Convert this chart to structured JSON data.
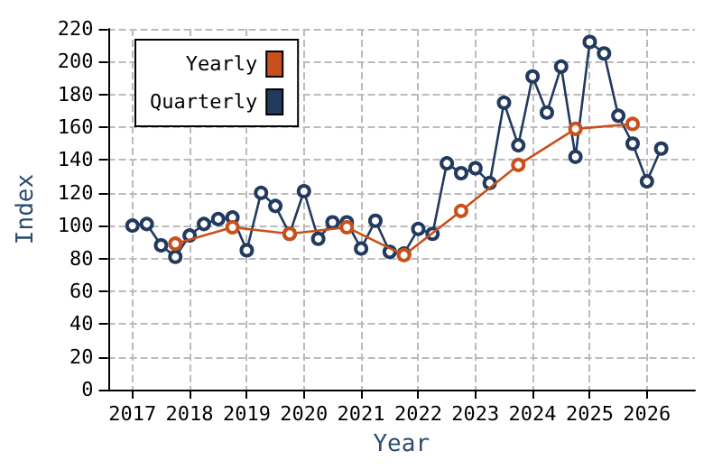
{
  "chart_data": {
    "type": "line",
    "xlabel": "Year",
    "ylabel": "Index",
    "xlim": [
      2016.57,
      2026.84
    ],
    "xticks": [
      2017,
      2018,
      2019,
      2020,
      2021,
      2022,
      2023,
      2024,
      2025,
      2026
    ],
    "ylim": [
      0,
      220
    ],
    "yticks": [
      0,
      20,
      40,
      60,
      80,
      100,
      120,
      140,
      160,
      180,
      200,
      220
    ],
    "grid": true,
    "legend": "top left",
    "marker": "circle",
    "line_style": "solid",
    "series": [
      {
        "name": "Yearly",
        "color": "#c8501a",
        "x": [
          2017.75,
          2018.75,
          2019.75,
          2020.75,
          2021.75,
          2022.75,
          2023.75,
          2024.75,
          2025.75
        ],
        "values": [
          89,
          99,
          95,
          99,
          82,
          109,
          137,
          159,
          162
        ]
      },
      {
        "name": "Quarterly",
        "color": "#223a5e",
        "x": [
          2017,
          2017.25,
          2017.5,
          2017.75,
          2018,
          2018.25,
          2018.5,
          2018.75,
          2019,
          2019.25,
          2019.5,
          2019.75,
          2020,
          2020.25,
          2020.5,
          2020.75,
          2021,
          2021.25,
          2021.5,
          2021.75,
          2022,
          2022.25,
          2022.5,
          2022.75,
          2023,
          2023.25,
          2023.5,
          2023.75,
          2024,
          2024.25,
          2024.5,
          2024.75,
          2025,
          2025.25,
          2025.5,
          2025.75,
          2026,
          2026.25
        ],
        "values": [
          100,
          101,
          88,
          81,
          94,
          101,
          104,
          105,
          85,
          120,
          112,
          95,
          121,
          92,
          102,
          102,
          86,
          103,
          84,
          83,
          98,
          95,
          138,
          132,
          135,
          126,
          175,
          149,
          191,
          169,
          197,
          142,
          212,
          205,
          167,
          150,
          127,
          147
        ]
      }
    ]
  }
}
